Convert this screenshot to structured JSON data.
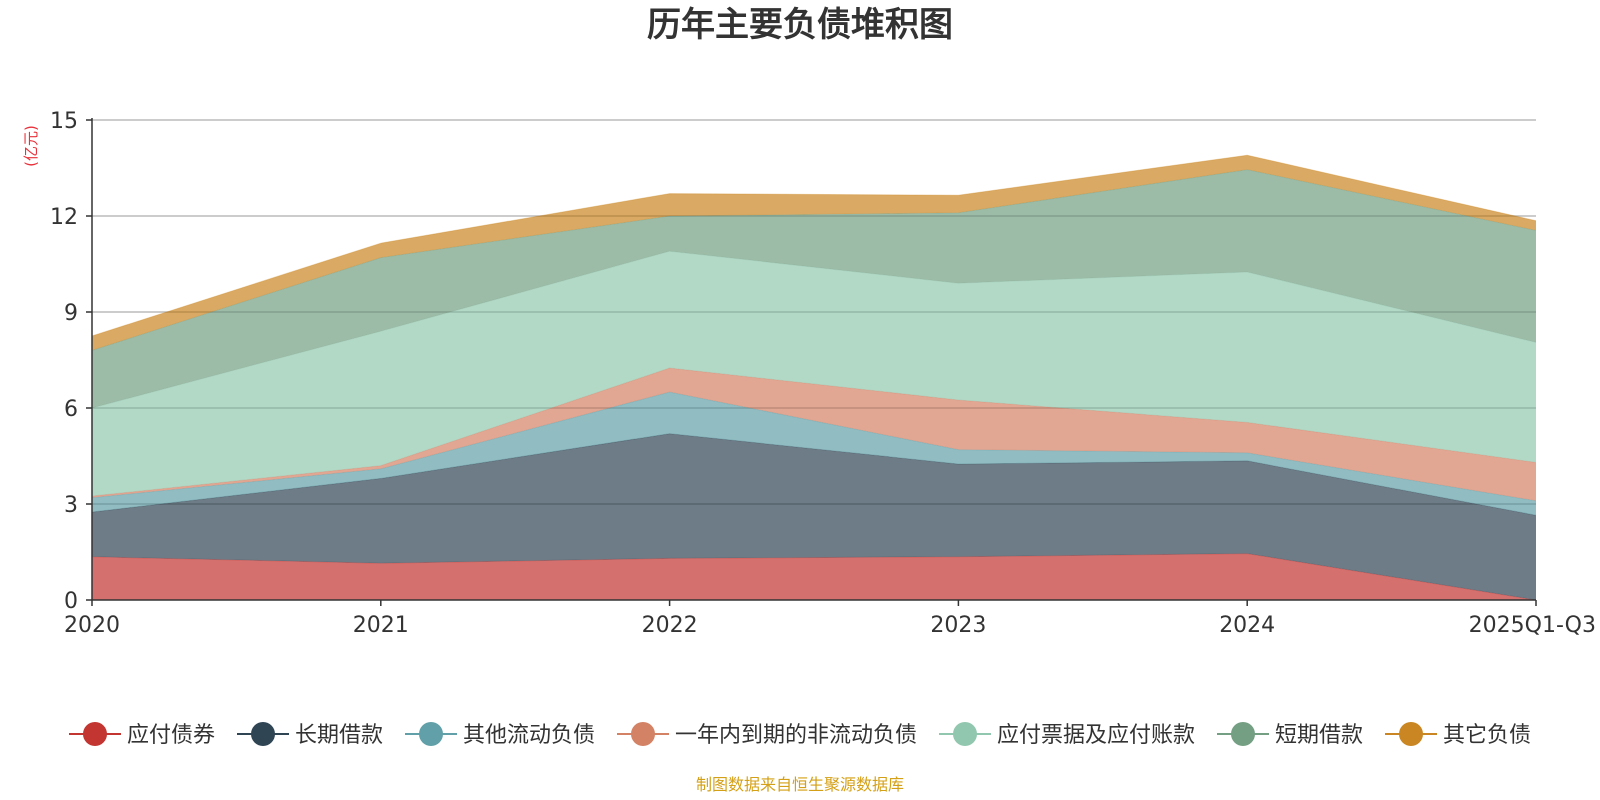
{
  "chart_data": {
    "type": "area",
    "stacked": true,
    "title": "历年主要负债堆积图",
    "ylabel": "(亿元)",
    "xlabel": "",
    "ylim": [
      0,
      15
    ],
    "yticks": [
      0,
      3,
      6,
      9,
      12,
      15
    ],
    "grid": true,
    "legend_position": "bottom",
    "categories": [
      "2020",
      "2021",
      "2022",
      "2023",
      "2024",
      "2025Q1-Q3"
    ],
    "series": [
      {
        "name": "应付债券",
        "color": "#c23531",
        "values": [
          1.35,
          1.15,
          1.3,
          1.35,
          1.45,
          0.0
        ]
      },
      {
        "name": "长期借款",
        "color": "#2f4554",
        "values": [
          1.4,
          2.65,
          3.9,
          2.9,
          2.9,
          2.65
        ]
      },
      {
        "name": "其他流动负债",
        "color": "#61a0a8",
        "values": [
          0.45,
          0.3,
          1.3,
          0.45,
          0.25,
          0.45
        ]
      },
      {
        "name": "一年内到期的非流动负债",
        "color": "#d48265",
        "values": [
          0.05,
          0.1,
          0.75,
          1.55,
          0.95,
          1.2
        ]
      },
      {
        "name": "应付票据及应付账款",
        "color": "#91c7ae",
        "values": [
          2.75,
          4.2,
          3.65,
          3.65,
          4.7,
          3.75
        ]
      },
      {
        "name": "短期借款",
        "color": "#749f83",
        "values": [
          1.8,
          2.3,
          1.1,
          2.2,
          3.2,
          3.5
        ]
      },
      {
        "name": "其它负债",
        "color": "#ca8622",
        "values": [
          0.45,
          0.45,
          0.7,
          0.55,
          0.45,
          0.3
        ]
      }
    ],
    "source_note": "制图数据来自恒生聚源数据库"
  }
}
